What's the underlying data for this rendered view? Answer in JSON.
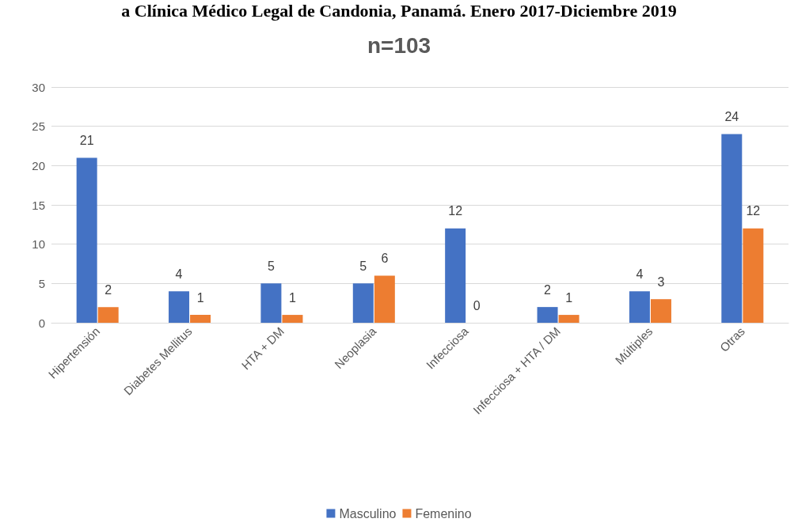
{
  "chart_data": {
    "type": "bar",
    "title": "n=103",
    "annotations": [
      "a Clínica Médico Legal de Candonia, Panamá. Enero 2017-Diciembre 2019"
    ],
    "categories": [
      "Hipertensión",
      "Diabetes Mellitus",
      "HTA + DM",
      "Neoplasia",
      "Infecciosa",
      "Infecciosa + HTA / DM",
      "Múltiples",
      "Otras"
    ],
    "series": [
      {
        "name": "Masculino",
        "color": "#4472c4",
        "values": [
          21,
          4,
          5,
          5,
          12,
          2,
          4,
          24
        ]
      },
      {
        "name": "Femenino",
        "color": "#ed7d31",
        "values": [
          2,
          1,
          1,
          6,
          0,
          1,
          3,
          12
        ]
      }
    ],
    "ylim": [
      0,
      30
    ],
    "yticks": [
      0,
      5,
      10,
      15,
      20,
      25,
      30
    ],
    "grid": "y",
    "legend": "bottom",
    "data_labels": true
  }
}
